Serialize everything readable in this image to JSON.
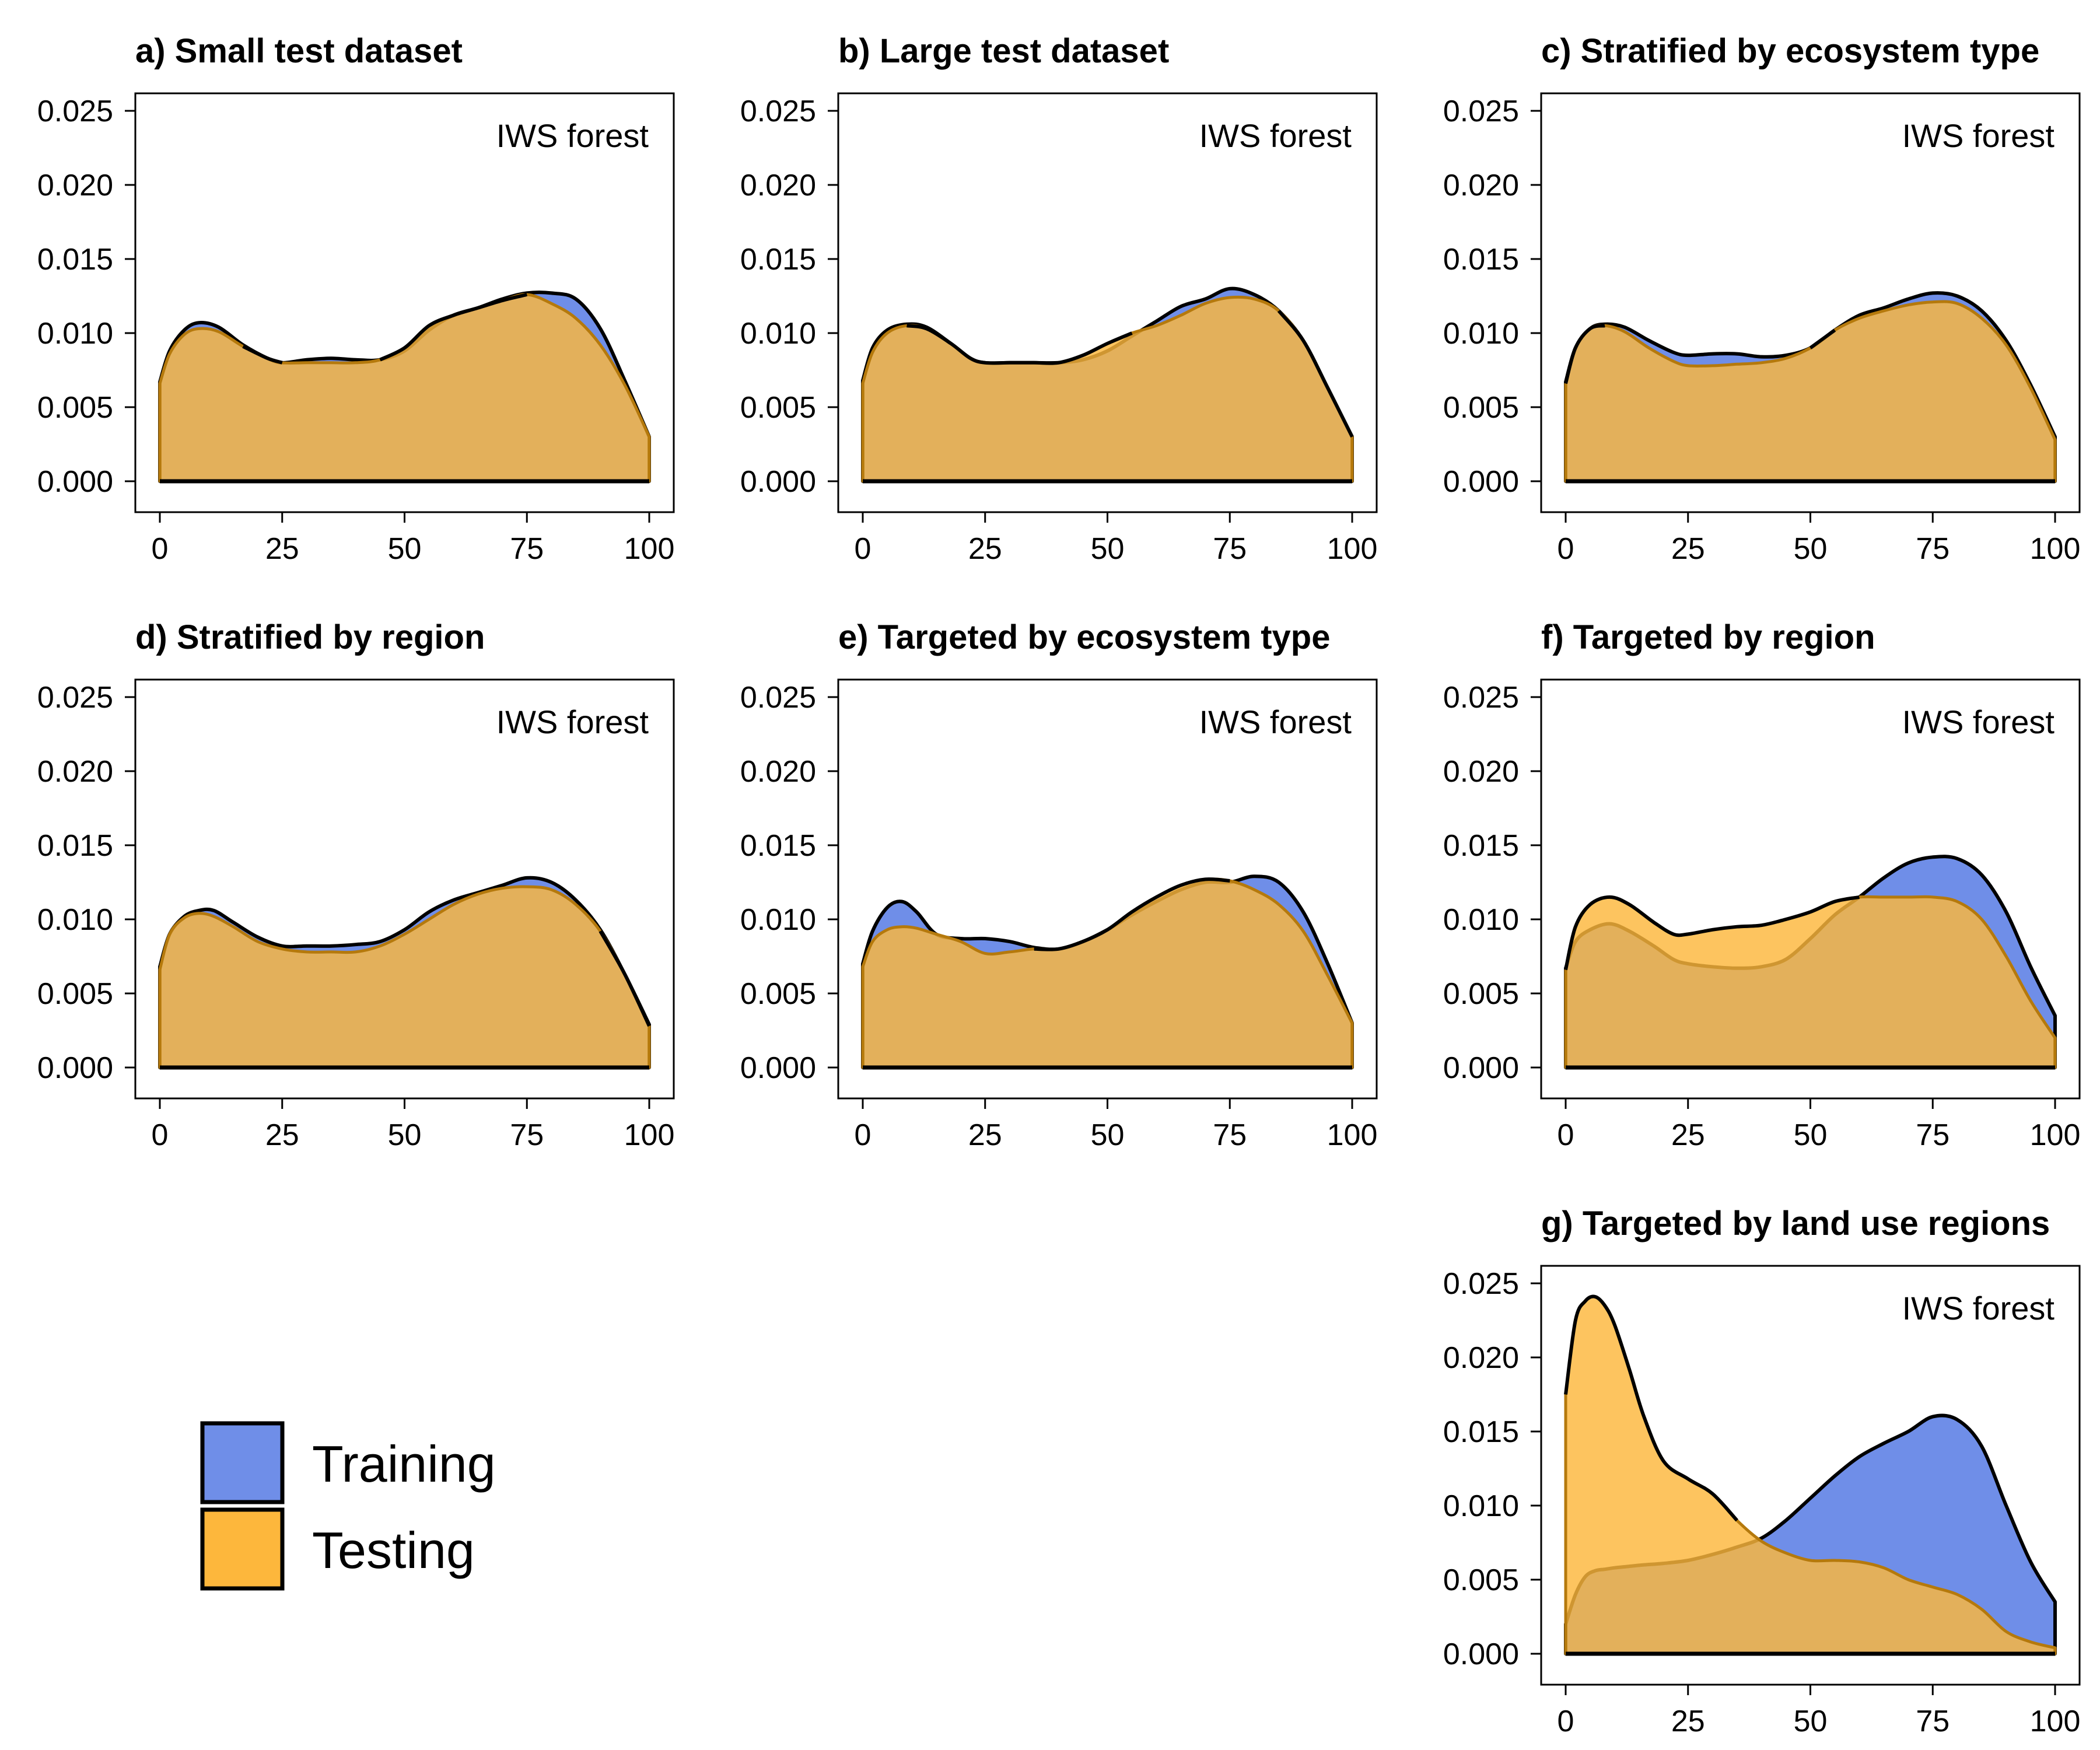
{
  "colors": {
    "training": "#6f8ee8",
    "testing": "#fdb73c",
    "outline": "#000000",
    "panel_border": "#000000"
  },
  "legend": {
    "items": [
      {
        "label": "Training",
        "color": "#6f8ee8"
      },
      {
        "label": "Testing",
        "color": "#fdb73c"
      }
    ]
  },
  "chart_data": [
    {
      "type": "area",
      "title": "a) Small test dataset",
      "annotation": "IWS forest",
      "xlim": [
        0,
        100
      ],
      "ylim": [
        0,
        0.025
      ],
      "xticks": [
        "0",
        "25",
        "50",
        "75",
        "100"
      ],
      "yticks": [
        "0.000",
        "0.005",
        "0.010",
        "0.015",
        "0.020",
        "0.025"
      ],
      "grid": false,
      "x": [
        0,
        2,
        5,
        8,
        12,
        17,
        22,
        25,
        30,
        35,
        40,
        45,
        50,
        55,
        60,
        65,
        70,
        75,
        80,
        85,
        90,
        95,
        100
      ],
      "series": [
        {
          "name": "Training",
          "values": [
            0.0067,
            0.0088,
            0.0102,
            0.0107,
            0.0104,
            0.0092,
            0.0083,
            0.008,
            0.0082,
            0.0083,
            0.0082,
            0.0082,
            0.0088,
            0.0102,
            0.0112,
            0.0117,
            0.0123,
            0.0127,
            0.0127,
            0.0123,
            0.0103,
            0.0068,
            0.003
          ]
        },
        {
          "name": "Testing",
          "values": [
            0.0066,
            0.0086,
            0.0099,
            0.0103,
            0.0101,
            0.0091,
            0.0083,
            0.008,
            0.008,
            0.008,
            0.008,
            0.0082,
            0.009,
            0.0105,
            0.0112,
            0.0117,
            0.0122,
            0.0126,
            0.012,
            0.011,
            0.0092,
            0.0065,
            0.003
          ]
        }
      ]
    },
    {
      "type": "area",
      "title": "b) Large test dataset",
      "annotation": "IWS forest",
      "xlim": [
        0,
        100
      ],
      "ylim": [
        0,
        0.025
      ],
      "xticks": [
        "0",
        "25",
        "50",
        "75",
        "100"
      ],
      "yticks": [
        "0.000",
        "0.005",
        "0.010",
        "0.015",
        "0.020",
        "0.025"
      ],
      "grid": false,
      "x": [
        0,
        2,
        5,
        9,
        13,
        18,
        22,
        25,
        30,
        35,
        40,
        45,
        50,
        55,
        60,
        65,
        70,
        75,
        80,
        85,
        90,
        95,
        100
      ],
      "series": [
        {
          "name": "Training",
          "values": [
            0.0068,
            0.009,
            0.0102,
            0.0106,
            0.0104,
            0.0093,
            0.0083,
            0.008,
            0.008,
            0.008,
            0.008,
            0.0082,
            0.0088,
            0.0098,
            0.0108,
            0.0118,
            0.0123,
            0.013,
            0.0126,
            0.0115,
            0.0095,
            0.0063,
            0.003
          ]
        },
        {
          "name": "Testing",
          "values": [
            0.0066,
            0.0087,
            0.01,
            0.0105,
            0.0103,
            0.0093,
            0.0083,
            0.008,
            0.008,
            0.008,
            0.008,
            0.0085,
            0.0093,
            0.01,
            0.0105,
            0.0112,
            0.012,
            0.0124,
            0.0123,
            0.0115,
            0.0095,
            0.0063,
            0.003
          ]
        }
      ]
    },
    {
      "type": "area",
      "title": "c) Stratified by ecosystem type",
      "annotation": "IWS forest",
      "xlim": [
        0,
        100
      ],
      "ylim": [
        0,
        0.025
      ],
      "xticks": [
        "0",
        "25",
        "50",
        "75",
        "100"
      ],
      "yticks": [
        "0.000",
        "0.005",
        "0.010",
        "0.015",
        "0.020",
        "0.025"
      ],
      "grid": false,
      "x": [
        0,
        2,
        5,
        8,
        12,
        17,
        22,
        25,
        30,
        35,
        40,
        45,
        50,
        55,
        60,
        65,
        70,
        75,
        80,
        85,
        90,
        95,
        100
      ],
      "series": [
        {
          "name": "Training",
          "values": [
            0.0067,
            0.009,
            0.0103,
            0.0106,
            0.0104,
            0.0095,
            0.0087,
            0.0085,
            0.0086,
            0.0086,
            0.0084,
            0.0085,
            0.009,
            0.0102,
            0.0112,
            0.0117,
            0.0123,
            0.0127,
            0.0125,
            0.0115,
            0.0095,
            0.0065,
            0.003
          ]
        },
        {
          "name": "Testing",
          "values": [
            0.0066,
            0.009,
            0.0103,
            0.0105,
            0.0101,
            0.009,
            0.0081,
            0.0078,
            0.0078,
            0.0079,
            0.008,
            0.0083,
            0.009,
            0.0102,
            0.011,
            0.0115,
            0.0119,
            0.0121,
            0.012,
            0.011,
            0.0092,
            0.0063,
            0.0028
          ]
        }
      ]
    },
    {
      "type": "area",
      "title": "d) Stratified by region",
      "annotation": "IWS forest",
      "xlim": [
        0,
        100
      ],
      "ylim": [
        0,
        0.025
      ],
      "xticks": [
        "0",
        "25",
        "50",
        "75",
        "100"
      ],
      "yticks": [
        "0.000",
        "0.005",
        "0.010",
        "0.015",
        "0.020",
        "0.025"
      ],
      "grid": false,
      "x": [
        0,
        2,
        5,
        8,
        11,
        15,
        20,
        25,
        30,
        35,
        40,
        45,
        50,
        55,
        60,
        65,
        70,
        75,
        80,
        85,
        90,
        95,
        100
      ],
      "series": [
        {
          "name": "Training",
          "values": [
            0.0068,
            0.009,
            0.0102,
            0.0106,
            0.0106,
            0.0098,
            0.0088,
            0.0082,
            0.0082,
            0.0082,
            0.0083,
            0.0085,
            0.0093,
            0.0105,
            0.0113,
            0.0118,
            0.0123,
            0.0128,
            0.0125,
            0.0113,
            0.0093,
            0.0063,
            0.0029
          ]
        },
        {
          "name": "Testing",
          "values": [
            0.0066,
            0.009,
            0.0101,
            0.0104,
            0.0102,
            0.0095,
            0.0085,
            0.008,
            0.0078,
            0.0078,
            0.0078,
            0.0082,
            0.009,
            0.01,
            0.011,
            0.0117,
            0.0121,
            0.0122,
            0.012,
            0.011,
            0.0092,
            0.0063,
            0.0028
          ]
        }
      ]
    },
    {
      "type": "area",
      "title": "e) Targeted by ecosystem type",
      "annotation": "IWS forest",
      "xlim": [
        0,
        100
      ],
      "ylim": [
        0,
        0.025
      ],
      "xticks": [
        "0",
        "25",
        "50",
        "75",
        "100"
      ],
      "yticks": [
        "0.000",
        "0.005",
        "0.010",
        "0.015",
        "0.020",
        "0.025"
      ],
      "grid": false,
      "x": [
        0,
        2,
        5,
        8,
        11,
        15,
        20,
        25,
        30,
        35,
        40,
        45,
        50,
        55,
        60,
        65,
        70,
        75,
        80,
        85,
        90,
        95,
        100
      ],
      "series": [
        {
          "name": "Training",
          "values": [
            0.007,
            0.0092,
            0.0108,
            0.0112,
            0.0105,
            0.009,
            0.0087,
            0.0087,
            0.0085,
            0.0081,
            0.008,
            0.0085,
            0.0093,
            0.0103,
            0.0112,
            0.012,
            0.0125,
            0.0125,
            0.0129,
            0.0125,
            0.0105,
            0.007,
            0.003
          ]
        },
        {
          "name": "Testing",
          "values": [
            0.0068,
            0.0085,
            0.0093,
            0.0095,
            0.0094,
            0.009,
            0.0085,
            0.0077,
            0.0078,
            0.008,
            0.008,
            0.0085,
            0.0093,
            0.0105,
            0.0115,
            0.0123,
            0.0127,
            0.0126,
            0.012,
            0.011,
            0.0092,
            0.0062,
            0.003
          ]
        }
      ]
    },
    {
      "type": "area",
      "title": "f) Targeted by region",
      "annotation": "IWS forest",
      "xlim": [
        0,
        100
      ],
      "ylim": [
        0,
        0.025
      ],
      "xticks": [
        "0",
        "25",
        "50",
        "75",
        "100"
      ],
      "yticks": [
        "0.000",
        "0.005",
        "0.010",
        "0.015",
        "0.020",
        "0.025"
      ],
      "grid": false,
      "x": [
        0,
        2,
        5,
        9,
        13,
        18,
        22,
        25,
        30,
        35,
        40,
        45,
        50,
        55,
        60,
        65,
        70,
        75,
        80,
        85,
        90,
        95,
        100
      ],
      "series": [
        {
          "name": "Training",
          "values": [
            0.0067,
            0.0085,
            0.0093,
            0.0097,
            0.0092,
            0.0082,
            0.0073,
            0.007,
            0.0068,
            0.0067,
            0.0068,
            0.0073,
            0.0087,
            0.0103,
            0.0115,
            0.0128,
            0.0138,
            0.0142,
            0.0141,
            0.013,
            0.0105,
            0.0068,
            0.0035
          ]
        },
        {
          "name": "Testing",
          "values": [
            0.0066,
            0.0095,
            0.011,
            0.0115,
            0.011,
            0.0098,
            0.009,
            0.009,
            0.0093,
            0.0095,
            0.0096,
            0.01,
            0.0105,
            0.0112,
            0.0115,
            0.0115,
            0.0115,
            0.0115,
            0.0112,
            0.01,
            0.0075,
            0.0045,
            0.002
          ]
        }
      ]
    },
    {
      "type": "area",
      "title": "g) Targeted by land use regions",
      "annotation": "IWS forest",
      "xlim": [
        0,
        100
      ],
      "ylim": [
        0,
        0.025
      ],
      "xticks": [
        "0",
        "25",
        "50",
        "75",
        "100"
      ],
      "yticks": [
        "0.000",
        "0.005",
        "0.010",
        "0.015",
        "0.020",
        "0.025"
      ],
      "grid": false,
      "x": [
        0,
        2,
        4,
        6,
        8,
        10,
        13,
        16,
        20,
        25,
        30,
        35,
        40,
        45,
        50,
        55,
        60,
        65,
        70,
        75,
        80,
        85,
        90,
        95,
        100
      ],
      "series": [
        {
          "name": "Training",
          "values": [
            0.002,
            0.004,
            0.0052,
            0.0056,
            0.0057,
            0.0058,
            0.0059,
            0.006,
            0.0061,
            0.0063,
            0.0067,
            0.0072,
            0.0078,
            0.009,
            0.0105,
            0.012,
            0.0133,
            0.0142,
            0.015,
            0.016,
            0.0158,
            0.014,
            0.01,
            0.0062,
            0.0035
          ]
        },
        {
          "name": "Testing",
          "values": [
            0.0175,
            0.0225,
            0.0238,
            0.0241,
            0.0235,
            0.0222,
            0.0192,
            0.016,
            0.013,
            0.0118,
            0.0108,
            0.009,
            0.0076,
            0.0068,
            0.0063,
            0.0063,
            0.0062,
            0.0058,
            0.005,
            0.0045,
            0.004,
            0.003,
            0.0015,
            0.0008,
            0.0004
          ]
        }
      ]
    }
  ]
}
